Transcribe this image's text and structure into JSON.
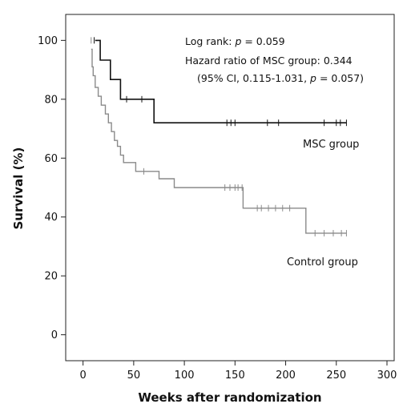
{
  "chart_data": {
    "type": "line",
    "subtype": "kaplan-meier",
    "title": "",
    "xlabel": "Weeks after randomization",
    "ylabel": "Survival (%)",
    "xlim": [
      -10,
      300
    ],
    "ylim": [
      -5,
      105
    ],
    "xticks": [
      0,
      50,
      100,
      150,
      200,
      250,
      300
    ],
    "yticks": [
      0,
      20,
      40,
      60,
      80,
      100
    ],
    "xtick_labels": [
      "0",
      "50",
      "100",
      "150",
      "200",
      "250",
      "300"
    ],
    "ytick_labels": [
      "0",
      "20",
      "40",
      "60",
      "80",
      "100"
    ],
    "grid": false,
    "legend": "none",
    "annotations": {
      "log_rank_prefix": "Log rank: ",
      "log_rank_p_symbol": "p",
      "log_rank_value": " = 0.059",
      "hazard_ratio": "Hazard ratio of MSC group: 0.344",
      "ci_prefix": "(95% CI, 0.115-1.031, ",
      "ci_p_symbol": "p",
      "ci_suffix": " = 0.057)"
    },
    "series": [
      {
        "name": "MSC group",
        "color": "#111111",
        "steps": [
          [
            12,
            100
          ],
          [
            17,
            93.3
          ],
          [
            27,
            86.7
          ],
          [
            37,
            80
          ],
          [
            70,
            72
          ],
          [
            260,
            72
          ]
        ],
        "censored": [
          [
            11,
            100
          ],
          [
            43,
            80
          ],
          [
            58,
            80
          ],
          [
            142,
            72
          ],
          [
            146,
            72
          ],
          [
            150,
            72
          ],
          [
            182,
            72
          ],
          [
            193,
            72
          ],
          [
            238,
            72
          ],
          [
            250,
            72
          ],
          [
            254,
            72
          ],
          [
            260,
            72
          ]
        ]
      },
      {
        "name": "Control group",
        "color": "#8a8a8a",
        "steps": [
          [
            8,
            97
          ],
          [
            9,
            91
          ],
          [
            10,
            88
          ],
          [
            12,
            84
          ],
          [
            15,
            81
          ],
          [
            18,
            78
          ],
          [
            22,
            75
          ],
          [
            25,
            72
          ],
          [
            28,
            69
          ],
          [
            31,
            66
          ],
          [
            34,
            64
          ],
          [
            37,
            61
          ],
          [
            40,
            58.5
          ],
          [
            52,
            55.5
          ],
          [
            75,
            53
          ],
          [
            90,
            50
          ],
          [
            158,
            43
          ],
          [
            220,
            34.5
          ],
          [
            260,
            34.5
          ]
        ],
        "censored": [
          [
            8,
            100
          ],
          [
            60,
            55.5
          ],
          [
            140,
            50
          ],
          [
            145,
            50
          ],
          [
            150,
            50
          ],
          [
            153,
            50
          ],
          [
            157,
            50
          ],
          [
            172,
            43
          ],
          [
            176,
            43
          ],
          [
            183,
            43
          ],
          [
            190,
            43
          ],
          [
            197,
            43
          ],
          [
            204,
            43
          ],
          [
            229,
            34.5
          ],
          [
            238,
            34.5
          ],
          [
            247,
            34.5
          ],
          [
            255,
            34.5
          ],
          [
            260,
            34.5
          ]
        ]
      }
    ]
  }
}
